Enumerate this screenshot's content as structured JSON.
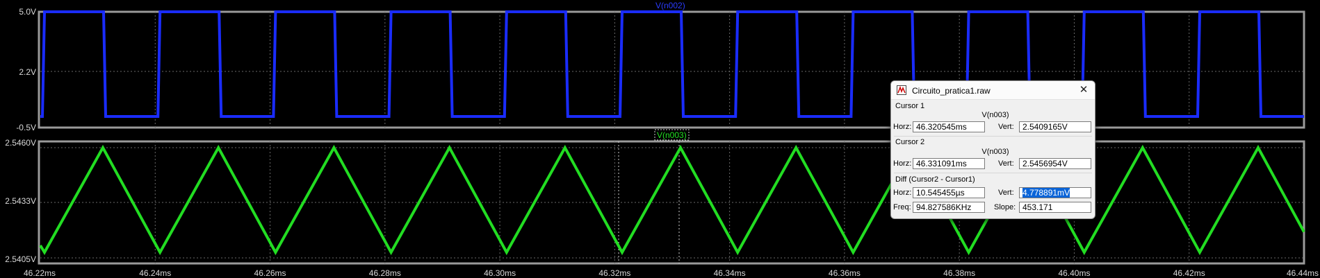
{
  "top_plot": {
    "trace_label": "V(n002)",
    "y_ticks": [
      "5.0V",
      "2.2V",
      "-0.5V"
    ],
    "trace_color": "#1a2cff"
  },
  "bottom_plot": {
    "trace_label": "V(n003)",
    "y_ticks": [
      "2.5460V",
      "2.5433V",
      "2.5405V"
    ],
    "trace_color": "#22dd22"
  },
  "x_axis": {
    "ticks": [
      "46.22ms",
      "46.24ms",
      "46.26ms",
      "46.28ms",
      "46.30ms",
      "46.32ms",
      "46.34ms",
      "46.36ms",
      "46.38ms",
      "46.40ms",
      "46.42ms",
      "46.44ms"
    ]
  },
  "dialog": {
    "title": "Circuito_pratica1.raw",
    "cursor1": {
      "label": "Cursor 1",
      "signal": "V(n003)",
      "horz_label": "Horz:",
      "horz": "46.320545ms",
      "vert_label": "Vert:",
      "vert": "2.5409165V"
    },
    "cursor2": {
      "label": "Cursor 2",
      "signal": "V(n003)",
      "horz_label": "Horz:",
      "horz": "46.331091ms",
      "vert_label": "Vert:",
      "vert": "2.5456954V"
    },
    "diff": {
      "label": "Diff (Cursor2 - Cursor1)",
      "horz_label": "Horz:",
      "horz": "10.545455µs",
      "vert_label": "Vert:",
      "vert": "4.778891mV",
      "freq_label": "Freq:",
      "freq": "94.827586KHz",
      "slope_label": "Slope:",
      "slope": "453.171"
    }
  }
}
